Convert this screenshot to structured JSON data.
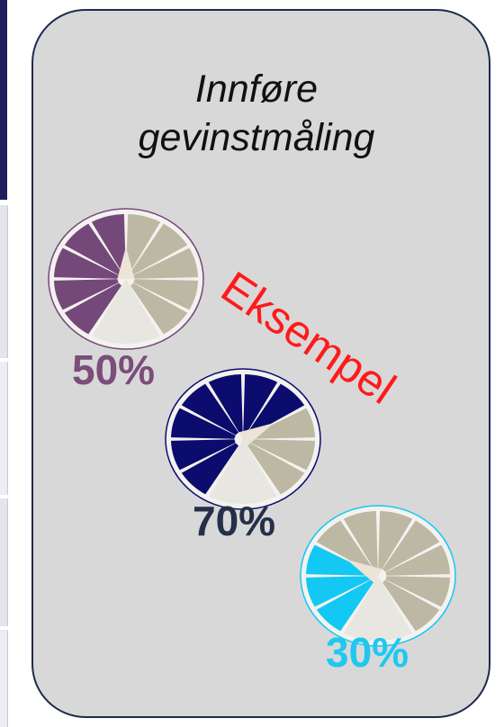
{
  "title": {
    "line1": "Innføre",
    "line2": "gevinstmåling"
  },
  "stamp": "Eksempel",
  "gauges": [
    {
      "label": "50%",
      "fraction": 0.5,
      "fill_color": "#74497a",
      "rim_color": "#74497a"
    },
    {
      "label": "70%",
      "fraction": 0.7,
      "fill_color": "#0c0c6e",
      "rim_color": "#0c0c6e"
    },
    {
      "label": "30%",
      "fraction": 0.3,
      "fill_color": "#14c8f4",
      "rim_color": "#14c8f4"
    }
  ],
  "colors": {
    "card_bg": "#d8d8d8",
    "card_border": "#1e2a50",
    "empty_segment": "#bcb8a4",
    "gauge_bg": "#e8e6e0",
    "stamp": "#ff1a1a"
  }
}
